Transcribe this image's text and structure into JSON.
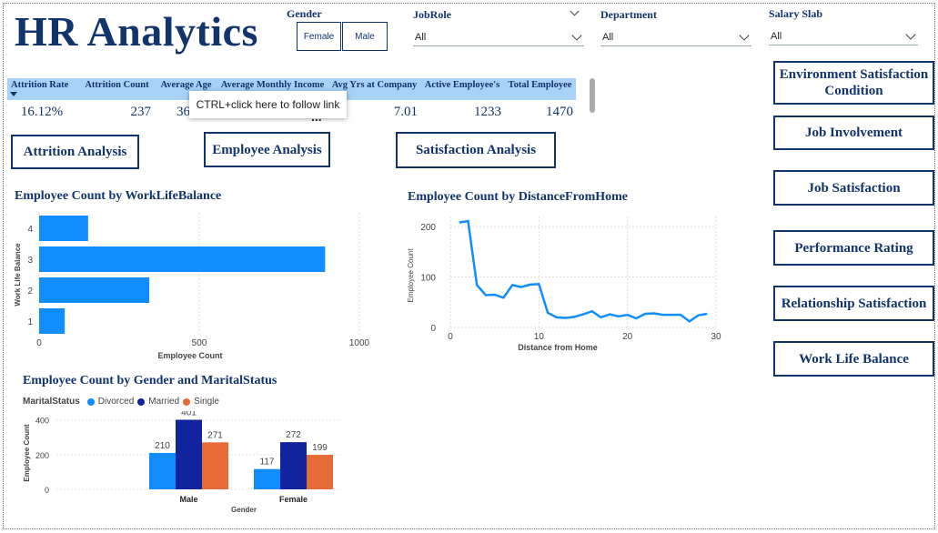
{
  "header": {
    "title": "HR Analytics"
  },
  "slicers": {
    "gender": {
      "label": "Gender",
      "options": [
        "Female",
        "Male"
      ]
    },
    "jobrole": {
      "label": "JobRole",
      "value": "All"
    },
    "department": {
      "label": "Department",
      "value": "All"
    },
    "salary": {
      "label": "Salary Slab",
      "value": "All"
    }
  },
  "kpis": {
    "headers": [
      "Attrition Rate",
      "Attrition Count",
      "Average Age",
      "Average Monthly Income",
      "Avg Yrs at Company",
      "Active Employee's",
      "Total Employee"
    ],
    "values": [
      "16.12%",
      "237",
      "36",
      "",
      "7.01",
      "1233",
      "1470"
    ],
    "more": "..."
  },
  "tooltip": "CTRL+click here to follow link",
  "nav": {
    "attrition": "Attrition Analysis",
    "employee": "Employee Analysis",
    "satisfaction": "Satisfaction Analysis"
  },
  "side_nav": [
    "Environment Satisfaction Condition",
    "Job Involvement",
    "Job Satisfaction",
    "Performance Rating",
    "Relationship Satisfaction",
    "Work Life Balance"
  ],
  "colors": {
    "bar": "#118dff",
    "married": "#12239e",
    "single": "#e66c37",
    "title": "#12346c"
  },
  "chart_data": [
    {
      "type": "bar",
      "orientation": "horizontal",
      "title": "Employee Count by WorkLifeBalance",
      "xlabel": "Employee Count",
      "ylabel": "Work Life Balance",
      "categories": [
        "4",
        "3",
        "2",
        "1"
      ],
      "values": [
        153,
        893,
        344,
        80
      ],
      "xlim": [
        0,
        1000
      ],
      "xticks": [
        "0",
        "500",
        "1000"
      ],
      "grid": true
    },
    {
      "type": "line",
      "title": "Employee Count by DistanceFromHome",
      "xlabel": "Distance from Home",
      "ylabel": "Employee Count",
      "x": [
        1,
        2,
        3,
        4,
        5,
        6,
        7,
        8,
        9,
        10,
        11,
        12,
        13,
        14,
        15,
        16,
        17,
        18,
        19,
        20,
        21,
        22,
        23,
        24,
        25,
        26,
        27,
        28,
        29
      ],
      "values": [
        208,
        211,
        84,
        64,
        65,
        59,
        84,
        80,
        85,
        86,
        29,
        20,
        19,
        21,
        26,
        32,
        20,
        26,
        22,
        25,
        18,
        27,
        28,
        25,
        25,
        25,
        12,
        24,
        27
      ],
      "xlim": [
        0,
        30
      ],
      "ylim": [
        0,
        220
      ],
      "xticks": [
        "0",
        "10",
        "20",
        "30"
      ],
      "yticks": [
        "0",
        "100",
        "200"
      ],
      "grid": true
    },
    {
      "type": "bar",
      "title": "Employee Count by Gender and MaritalStatus",
      "xlabel": "Gender",
      "ylabel": "Employee Count",
      "legend_title": "MaritalStatus",
      "categories": [
        "Male",
        "Female"
      ],
      "series": [
        {
          "name": "Divorced",
          "values": [
            210,
            117
          ]
        },
        {
          "name": "Married",
          "values": [
            401,
            272
          ]
        },
        {
          "name": "Single",
          "values": [
            271,
            199
          ]
        }
      ],
      "ylim": [
        0,
        430
      ],
      "yticks": [
        "0",
        "200",
        "400"
      ],
      "legend": "top-left"
    }
  ]
}
